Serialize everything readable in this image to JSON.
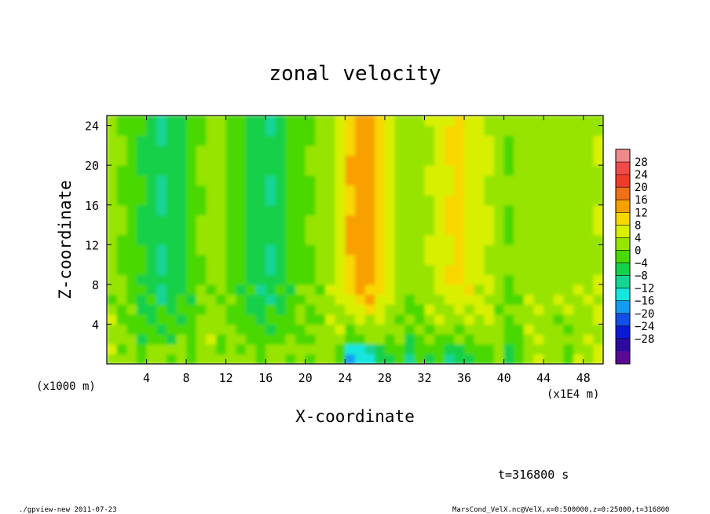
{
  "chart_data": {
    "type": "heatmap",
    "title": "zonal velocity",
    "xlabel": "X-coordinate",
    "ylabel": "Z-coordinate",
    "x_unit_left": "(x1000 m)",
    "x_unit_right": "(x1E4 m)",
    "xlim": [
      0,
      50
    ],
    "ylim": [
      0,
      25
    ],
    "x_ticks": [
      "4",
      "8",
      "12",
      "16",
      "20",
      "24",
      "28",
      "32",
      "36",
      "40",
      "44",
      "48"
    ],
    "y_ticks": [
      "4",
      "8",
      "12",
      "16",
      "20",
      "24"
    ],
    "colorbar": {
      "labels": [
        "28",
        "24",
        "20",
        "16",
        "12",
        "8",
        "4",
        "0",
        "−4",
        "−8",
        "−12",
        "−16",
        "−20",
        "−24",
        "−28"
      ],
      "levels": [
        32,
        28,
        24,
        20,
        16,
        12,
        8,
        4,
        0,
        -4,
        -8,
        -12,
        -16,
        -20,
        -24,
        -28,
        -32
      ],
      "colors": [
        "#f08a8a",
        "#f24a4a",
        "#ee3c2a",
        "#f07018",
        "#f8a000",
        "#f8d800",
        "#d8f000",
        "#96e400",
        "#4ad800",
        "#14d04a",
        "#14d496",
        "#14e6e0",
        "#149cf0",
        "#1050e8",
        "#0a1ad4",
        "#2c0aa0",
        "#5a0a96"
      ]
    },
    "time_label": "t=316800 s",
    "x_columns": [
      0,
      1,
      2,
      3,
      4,
      5,
      6,
      7,
      8,
      9,
      10,
      11,
      12,
      13,
      14,
      15,
      16,
      17,
      18,
      19,
      20,
      21,
      22,
      23,
      24,
      25,
      26,
      27,
      28,
      29,
      30,
      31,
      32,
      33,
      34,
      35,
      36,
      37,
      38,
      39,
      40,
      41,
      42,
      43,
      44,
      45,
      46,
      47,
      48,
      49,
      50
    ],
    "upper_layer_mean": [
      1,
      0,
      -2,
      -4,
      -6,
      -8,
      -7,
      -5,
      -2,
      0,
      2,
      1,
      -1,
      -3,
      -5,
      -7,
      -8,
      -6,
      -3,
      -1,
      0,
      1,
      3,
      5,
      12,
      15,
      14,
      10,
      5,
      3,
      2,
      3,
      4,
      6,
      8,
      9,
      7,
      5,
      4,
      1,
      0,
      1,
      2,
      3,
      1,
      2,
      3,
      2,
      3,
      4,
      3
    ],
    "near_surface_mean": [
      4,
      1,
      2,
      -1,
      3,
      4,
      0,
      2,
      -2,
      3,
      2,
      1,
      3,
      0,
      2,
      -1,
      4,
      2,
      1,
      2,
      0,
      2,
      3,
      -2,
      -20,
      -18,
      -14,
      -8,
      -4,
      -2,
      -8,
      -4,
      -3,
      -6,
      -10,
      -8,
      -4,
      -2,
      0,
      2,
      -6,
      -2,
      2,
      3,
      4,
      2,
      1,
      3,
      2,
      4,
      3
    ]
  },
  "footer": {
    "program": "./gpview-new   2011-07-23",
    "source": "MarsCond_VelX.nc@VelX,x=0:500000,z=0:25000,t=316800"
  }
}
